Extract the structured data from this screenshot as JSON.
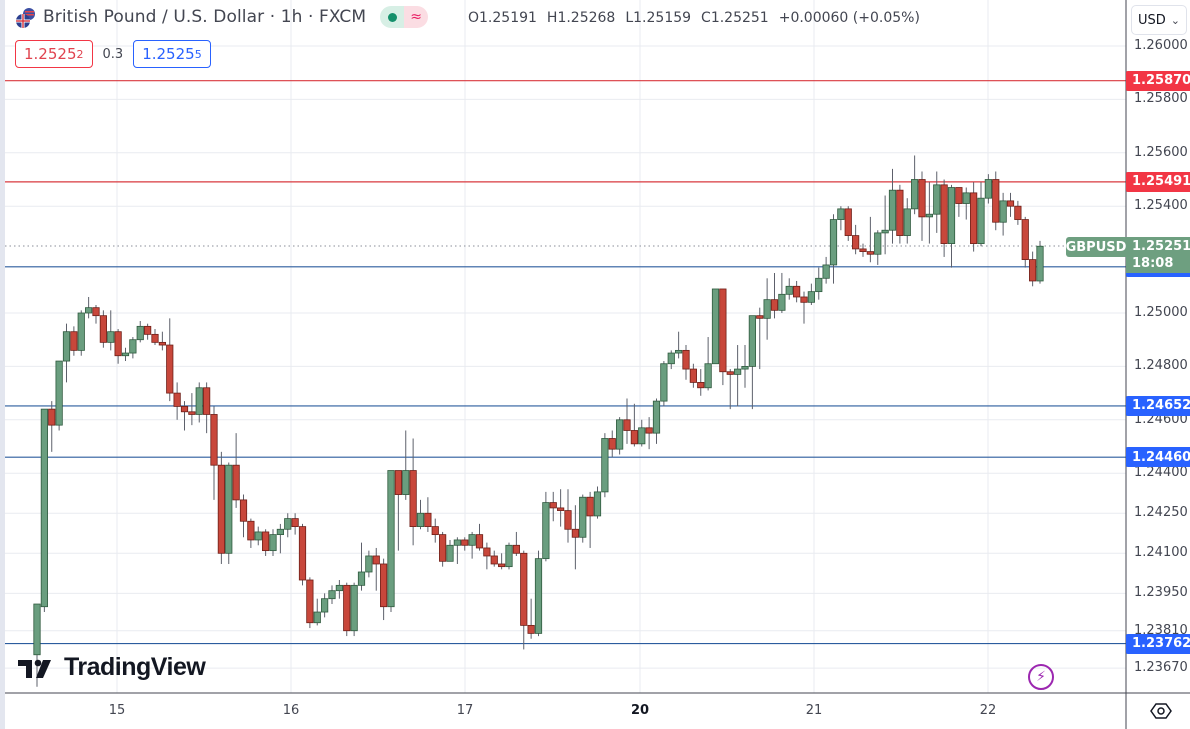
{
  "header": {
    "title": "British Pound / U.S. Dollar · 1h · FXCM",
    "status_wave": "≈",
    "ohlc": {
      "open": "O1.25191",
      "high": "H1.25268",
      "low": "L1.25159",
      "close": "C1.25251",
      "change": "+0.00060 (+0.05%)"
    },
    "sell_price": "1.2525",
    "sell_price_sup": "2",
    "spread": "0.3",
    "buy_price": "1.2525",
    "buy_price_sup": "5"
  },
  "currency_selector": {
    "value": "USD",
    "arrow": "⌄"
  },
  "current_price": {
    "symbol": "GBPUSD",
    "price": "1.25251",
    "countdown": "18:08",
    "color": "#6e9f80"
  },
  "logo": {
    "text": "TradingView"
  },
  "colors": {
    "up": "#6a9e7f",
    "down": "#c8473b",
    "resistance": "#d9393f",
    "support": "#2b5c9e",
    "resistance_label": "#f23645",
    "support_label": "#2962ff"
  },
  "chart_data": {
    "type": "candlestick",
    "title": "British Pound / U.S. Dollar · 1h · FXCM",
    "xlabel": "",
    "ylabel": "",
    "ylim": [
      1.2358,
      1.2612
    ],
    "grid": true,
    "x_tick_labels": [
      "15",
      "16",
      "17",
      "20",
      "21",
      "22"
    ],
    "y_tick_labels": [
      "1.26000",
      "1.25800",
      "1.25600",
      "1.25400",
      "1.25000",
      "1.24800",
      "1.24600",
      "1.24400",
      "1.24250",
      "1.24100",
      "1.23950",
      "1.23810",
      "1.23670"
    ],
    "horizontal_levels": [
      {
        "price": 1.2587,
        "label": "1.25870",
        "kind": "resistance"
      },
      {
        "price": 1.25491,
        "label": "1.25491",
        "kind": "resistance"
      },
      {
        "price": 1.25173,
        "label": "1.25173",
        "kind": "support"
      },
      {
        "price": 1.24652,
        "label": "1.24652",
        "kind": "support"
      },
      {
        "price": 1.2446,
        "label": "1.24460",
        "kind": "support"
      },
      {
        "price": 1.23762,
        "label": "1.23762",
        "kind": "support"
      }
    ],
    "last_price": 1.25251,
    "candles": [
      [
        1.2372,
        1.2391,
        1.236,
        1.239
      ],
      [
        1.239,
        1.2464,
        1.2388,
        1.2464
      ],
      [
        1.2464,
        1.2458,
        1.2448,
        1.2467
      ],
      [
        1.2458,
        1.2482,
        1.2456,
        1.2482
      ],
      [
        1.2482,
        1.2493,
        1.2474,
        1.2496
      ],
      [
        1.2493,
        1.2486,
        1.2484,
        1.2495
      ],
      [
        1.2486,
        1.25,
        1.2484,
        1.2501
      ],
      [
        1.25,
        1.2502,
        1.2498,
        1.2506
      ],
      [
        1.2502,
        1.2499,
        1.2496,
        1.2503
      ],
      [
        1.2499,
        1.2489,
        1.2487,
        1.2501
      ],
      [
        1.2489,
        1.2493,
        1.2486,
        1.2501
      ],
      [
        1.2493,
        1.2484,
        1.2481,
        1.2494
      ],
      [
        1.2484,
        1.2485,
        1.2482,
        1.2487
      ],
      [
        1.2485,
        1.249,
        1.2483,
        1.2491
      ],
      [
        1.249,
        1.2495,
        1.2489,
        1.2497
      ],
      [
        1.2495,
        1.2492,
        1.249,
        1.2496
      ],
      [
        1.2492,
        1.2489,
        1.2488,
        1.2494
      ],
      [
        1.2489,
        1.2488,
        1.2486,
        1.2493
      ],
      [
        1.2488,
        1.247,
        1.2467,
        1.2498
      ],
      [
        1.247,
        1.2465,
        1.246,
        1.2474
      ],
      [
        1.2465,
        1.2463,
        1.2456,
        1.2467
      ],
      [
        1.2463,
        1.2462,
        1.2458,
        1.247
      ],
      [
        1.2462,
        1.2472,
        1.2459,
        1.2474
      ],
      [
        1.2472,
        1.2462,
        1.2455,
        1.2474
      ],
      [
        1.2462,
        1.2443,
        1.243,
        1.2465
      ],
      [
        1.2443,
        1.241,
        1.2406,
        1.2448
      ],
      [
        1.241,
        1.2443,
        1.2406,
        1.2444
      ],
      [
        1.2443,
        1.243,
        1.2427,
        1.2455
      ],
      [
        1.243,
        1.2422,
        1.2416,
        1.2432
      ],
      [
        1.2422,
        1.2415,
        1.2412,
        1.2423
      ],
      [
        1.2415,
        1.2418,
        1.2413,
        1.242
      ],
      [
        1.2418,
        1.2411,
        1.2409,
        1.2419
      ],
      [
        1.2411,
        1.2417,
        1.2409,
        1.2419
      ],
      [
        1.2417,
        1.2419,
        1.241,
        1.2421
      ],
      [
        1.2419,
        1.2423,
        1.2416,
        1.2425
      ],
      [
        1.2423,
        1.242,
        1.2417,
        1.2425
      ],
      [
        1.242,
        1.24,
        1.2398,
        1.2421
      ],
      [
        1.24,
        1.2384,
        1.2382,
        1.2401
      ],
      [
        1.2384,
        1.2388,
        1.2383,
        1.2393
      ],
      [
        1.2388,
        1.2393,
        1.2386,
        1.2395
      ],
      [
        1.2393,
        1.2396,
        1.2391,
        1.2398
      ],
      [
        1.2396,
        1.2398,
        1.2393,
        1.24
      ],
      [
        1.2398,
        1.2381,
        1.2379,
        1.2399
      ],
      [
        1.2381,
        1.2398,
        1.2379,
        1.2399
      ],
      [
        1.2398,
        1.2403,
        1.2396,
        1.2414
      ],
      [
        1.2403,
        1.2409,
        1.2401,
        1.2411
      ],
      [
        1.2409,
        1.2406,
        1.2396,
        1.2412
      ],
      [
        1.2406,
        1.239,
        1.2385,
        1.2408
      ],
      [
        1.239,
        1.2441,
        1.2388,
        1.2441
      ],
      [
        1.2441,
        1.2432,
        1.2411,
        1.2441
      ],
      [
        1.2432,
        1.2441,
        1.243,
        1.2456
      ],
      [
        1.2441,
        1.242,
        1.2413,
        1.2453
      ],
      [
        1.242,
        1.2425,
        1.2419,
        1.243
      ],
      [
        1.2425,
        1.242,
        1.2418,
        1.2431
      ],
      [
        1.242,
        1.2417,
        1.2414,
        1.2423
      ],
      [
        1.2417,
        1.2407,
        1.2405,
        1.2418
      ],
      [
        1.2407,
        1.2413,
        1.2407,
        1.2415
      ],
      [
        1.2413,
        1.2415,
        1.2406,
        1.2416
      ],
      [
        1.2415,
        1.2413,
        1.2411,
        1.2416
      ],
      [
        1.2413,
        1.2417,
        1.2408,
        1.2418
      ],
      [
        1.2417,
        1.2412,
        1.2411,
        1.2421
      ],
      [
        1.2412,
        1.2409,
        1.2404,
        1.2414
      ],
      [
        1.2409,
        1.2406,
        1.2405,
        1.2411
      ],
      [
        1.2406,
        1.2405,
        1.2404,
        1.241
      ],
      [
        1.2405,
        1.2413,
        1.2404,
        1.2414
      ],
      [
        1.2413,
        1.241,
        1.2409,
        1.2418
      ],
      [
        1.241,
        1.2383,
        1.2374,
        1.2411
      ],
      [
        1.2383,
        1.238,
        1.2378,
        1.2393
      ],
      [
        1.238,
        1.2408,
        1.2379,
        1.2411
      ],
      [
        1.2408,
        1.2429,
        1.2407,
        1.2433
      ],
      [
        1.2429,
        1.2427,
        1.2422,
        1.2433
      ],
      [
        1.2427,
        1.2426,
        1.242,
        1.2434
      ],
      [
        1.2426,
        1.2419,
        1.2414,
        1.2434
      ],
      [
        1.2419,
        1.2416,
        1.2404,
        1.2428
      ],
      [
        1.2416,
        1.2431,
        1.2414,
        1.2432
      ],
      [
        1.2431,
        1.2424,
        1.2412,
        1.2433
      ],
      [
        1.2424,
        1.2433,
        1.2423,
        1.2435
      ],
      [
        1.2433,
        1.2453,
        1.2431,
        1.2455
      ],
      [
        1.2453,
        1.2449,
        1.2446,
        1.2456
      ],
      [
        1.2449,
        1.246,
        1.2447,
        1.2461
      ],
      [
        1.246,
        1.2456,
        1.2451,
        1.2468
      ],
      [
        1.2456,
        1.2451,
        1.245,
        1.2466
      ],
      [
        1.2451,
        1.2457,
        1.245,
        1.246
      ],
      [
        1.2457,
        1.2455,
        1.2449,
        1.2461
      ],
      [
        1.2455,
        1.2467,
        1.2451,
        1.2468
      ],
      [
        1.2467,
        1.2481,
        1.2465,
        1.2482
      ],
      [
        1.2481,
        1.2485,
        1.2479,
        1.2486
      ],
      [
        1.2485,
        1.2486,
        1.2483,
        1.2493
      ],
      [
        1.2486,
        1.2479,
        1.2475,
        1.2488
      ],
      [
        1.2479,
        1.2474,
        1.2472,
        1.2481
      ],
      [
        1.2474,
        1.2472,
        1.2469,
        1.2479
      ],
      [
        1.2472,
        1.2481,
        1.2471,
        1.2491
      ],
      [
        1.2481,
        1.2509,
        1.2481,
        1.2509
      ],
      [
        1.2509,
        1.2478,
        1.2473,
        1.2509
      ],
      [
        1.2478,
        1.2477,
        1.2464,
        1.2479
      ],
      [
        1.2477,
        1.2479,
        1.2465,
        1.2488
      ],
      [
        1.2479,
        1.248,
        1.2472,
        1.2488
      ],
      [
        1.248,
        1.2499,
        1.2464,
        1.2499
      ],
      [
        1.2499,
        1.2498,
        1.2479,
        1.2502
      ],
      [
        1.2498,
        1.2505,
        1.249,
        1.2513
      ],
      [
        1.2505,
        1.2501,
        1.2498,
        1.2515
      ],
      [
        1.2501,
        1.2507,
        1.25,
        1.2515
      ],
      [
        1.2507,
        1.251,
        1.2505,
        1.2513
      ],
      [
        1.251,
        1.2506,
        1.2504,
        1.2512
      ],
      [
        1.2506,
        1.2504,
        1.2496,
        1.2508
      ],
      [
        1.2504,
        1.2508,
        1.2503,
        1.2511
      ],
      [
        1.2508,
        1.2513,
        1.2505,
        1.2517
      ],
      [
        1.2513,
        1.2518,
        1.2511,
        1.2521
      ],
      [
        1.2518,
        1.2535,
        1.2511,
        1.2537
      ],
      [
        1.2535,
        1.2539,
        1.2531,
        1.254
      ],
      [
        1.2539,
        1.2529,
        1.2527,
        1.254
      ],
      [
        1.2529,
        1.2524,
        1.2522,
        1.2533
      ],
      [
        1.2524,
        1.2523,
        1.2521,
        1.2526
      ],
      [
        1.2523,
        1.2522,
        1.2519,
        1.2536
      ],
      [
        1.2522,
        1.253,
        1.2518,
        1.2531
      ],
      [
        1.253,
        1.2531,
        1.2522,
        1.2544
      ],
      [
        1.2531,
        1.2546,
        1.2526,
        1.2554
      ],
      [
        1.2546,
        1.2529,
        1.2526,
        1.2548
      ],
      [
        1.2529,
        1.2539,
        1.2526,
        1.2543
      ],
      [
        1.2539,
        1.255,
        1.2537,
        1.2559
      ],
      [
        1.255,
        1.2536,
        1.2527,
        1.2553
      ],
      [
        1.2536,
        1.2537,
        1.2526,
        1.2549
      ],
      [
        1.2537,
        1.2548,
        1.253,
        1.2553
      ],
      [
        1.2548,
        1.2526,
        1.2521,
        1.255
      ],
      [
        1.2526,
        1.2547,
        1.2517,
        1.2548
      ],
      [
        1.2547,
        1.2541,
        1.2536,
        1.2546
      ],
      [
        1.2541,
        1.2545,
        1.2535,
        1.2547
      ],
      [
        1.2545,
        1.2526,
        1.2523,
        1.2549
      ],
      [
        1.2526,
        1.2543,
        1.2525,
        1.2549
      ],
      [
        1.2543,
        1.255,
        1.2541,
        1.2552
      ],
      [
        1.255,
        1.2534,
        1.2531,
        1.2553
      ],
      [
        1.2534,
        1.2542,
        1.2529,
        1.2545
      ],
      [
        1.2542,
        1.254,
        1.2536,
        1.2545
      ],
      [
        1.254,
        1.2535,
        1.2533,
        1.2542
      ],
      [
        1.2535,
        1.252,
        1.2517,
        1.2536
      ],
      [
        1.252,
        1.2512,
        1.251,
        1.2523
      ],
      [
        1.2512,
        1.2525,
        1.2511,
        1.2527
      ]
    ]
  }
}
